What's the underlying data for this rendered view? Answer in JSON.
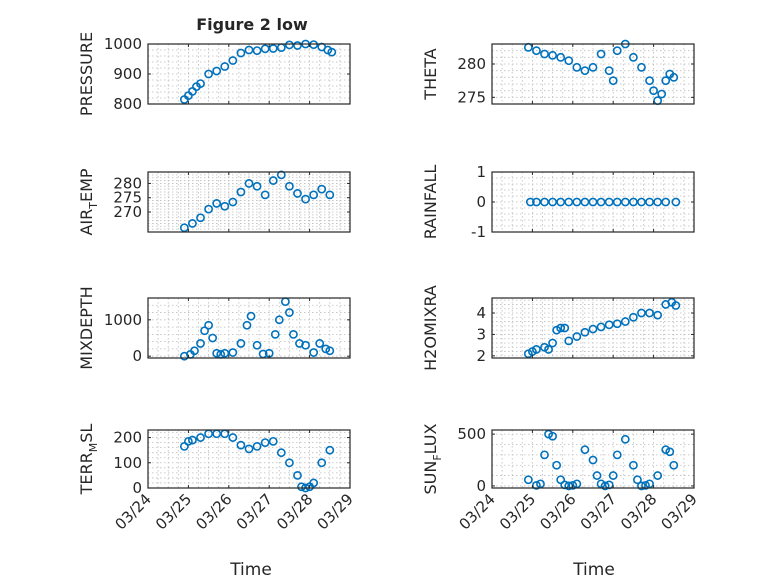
{
  "figure": {
    "title": "Figure 2 low",
    "xlabel": "Time",
    "x_tick_labels": [
      "03/24",
      "03/25",
      "03/26",
      "03/27",
      "03/28",
      "03/29"
    ],
    "marker_color": "#0072bd"
  },
  "chart_data": [
    {
      "type": "scatter",
      "ylabel": "PRESSURE",
      "xlim": [
        24,
        29
      ],
      "ylim": [
        800,
        1000
      ],
      "yticks": [
        800,
        900,
        1000
      ],
      "x": [
        24.9,
        25.0,
        25.1,
        25.2,
        25.3,
        25.5,
        25.7,
        25.9,
        26.1,
        26.3,
        26.5,
        26.7,
        26.9,
        27.1,
        27.3,
        27.5,
        27.7,
        27.9,
        28.1,
        28.3,
        28.45,
        28.55
      ],
      "y": [
        815,
        828,
        842,
        858,
        868,
        900,
        910,
        925,
        945,
        970,
        980,
        978,
        984,
        985,
        988,
        997,
        995,
        1000,
        998,
        990,
        980,
        973
      ]
    },
    {
      "type": "scatter",
      "ylabel": "THETA",
      "xlim": [
        24,
        29
      ],
      "ylim": [
        274,
        283
      ],
      "yticks": [
        275,
        280
      ],
      "x": [
        24.9,
        25.1,
        25.3,
        25.5,
        25.7,
        25.9,
        26.1,
        26.3,
        26.5,
        26.7,
        26.9,
        27.0,
        27.1,
        27.3,
        27.5,
        27.7,
        27.9,
        28.0,
        28.1,
        28.2,
        28.3,
        28.4,
        28.5
      ],
      "y": [
        282.5,
        282.0,
        281.5,
        281.3,
        281.0,
        280.5,
        279.5,
        279.0,
        279.5,
        281.5,
        279.0,
        277.5,
        282.0,
        283.0,
        281.0,
        279.5,
        277.5,
        276.0,
        274.5,
        275.5,
        277.5,
        278.5,
        278.0
      ]
    },
    {
      "type": "scatter",
      "ylabel": "AIR_TEMP",
      "ylabel_parts": [
        "AIR",
        "T",
        "EMP"
      ],
      "xlim": [
        24,
        29
      ],
      "ylim": [
        263,
        284
      ],
      "yticks": [
        270,
        275,
        280
      ],
      "x": [
        24.9,
        25.1,
        25.3,
        25.5,
        25.7,
        25.9,
        26.1,
        26.3,
        26.5,
        26.7,
        26.9,
        27.1,
        27.3,
        27.5,
        27.7,
        27.9,
        28.1,
        28.3,
        28.5
      ],
      "y": [
        264.5,
        266,
        268,
        271,
        273,
        272,
        273.5,
        277,
        280,
        279,
        276,
        281,
        283,
        279,
        276.5,
        274.5,
        276,
        278,
        276
      ]
    },
    {
      "type": "scatter",
      "ylabel": "RAINFALL",
      "xlim": [
        24,
        29
      ],
      "ylim": [
        -1,
        1
      ],
      "yticks": [
        -1,
        0,
        1
      ],
      "x": [
        24.95,
        25.1,
        25.3,
        25.5,
        25.7,
        25.9,
        26.1,
        26.3,
        26.5,
        26.7,
        26.9,
        27.1,
        27.3,
        27.5,
        27.7,
        27.9,
        28.1,
        28.3,
        28.55
      ],
      "y": [
        0,
        0,
        0,
        0,
        0,
        0,
        0,
        0,
        0,
        0,
        0,
        0,
        0,
        0,
        0,
        0,
        0,
        0,
        0
      ]
    },
    {
      "type": "scatter",
      "ylabel": "MIXDEPTH",
      "xlim": [
        24,
        29
      ],
      "ylim": [
        -50,
        1600
      ],
      "yticks": [
        0,
        1000
      ],
      "x": [
        24.9,
        25.05,
        25.15,
        25.3,
        25.4,
        25.5,
        25.6,
        25.7,
        25.8,
        25.9,
        26.1,
        26.3,
        26.45,
        26.55,
        26.7,
        26.85,
        27.0,
        27.15,
        27.25,
        27.4,
        27.5,
        27.6,
        27.75,
        27.9,
        28.1,
        28.25,
        28.4,
        28.5
      ],
      "y": [
        0,
        50,
        150,
        350,
        700,
        850,
        500,
        80,
        50,
        80,
        100,
        350,
        850,
        1100,
        300,
        60,
        80,
        600,
        1000,
        1500,
        1200,
        600,
        350,
        300,
        100,
        350,
        200,
        150
      ]
    },
    {
      "type": "scatter",
      "ylabel": "H2OMIXRA",
      "xlim": [
        24,
        29
      ],
      "ylim": [
        1.9,
        4.7
      ],
      "yticks": [
        2,
        3,
        4
      ],
      "x": [
        24.9,
        25.0,
        25.1,
        25.3,
        25.4,
        25.5,
        25.6,
        25.7,
        25.8,
        25.9,
        26.1,
        26.3,
        26.5,
        26.7,
        26.9,
        27.1,
        27.3,
        27.5,
        27.7,
        27.9,
        28.1,
        28.3,
        28.45,
        28.55
      ],
      "y": [
        2.1,
        2.2,
        2.3,
        2.4,
        2.3,
        2.6,
        3.2,
        3.3,
        3.3,
        2.7,
        2.9,
        3.1,
        3.25,
        3.35,
        3.45,
        3.5,
        3.6,
        3.8,
        4.0,
        4.0,
        3.9,
        4.4,
        4.5,
        4.35
      ]
    },
    {
      "type": "scatter",
      "ylabel": "TERR_MSL",
      "ylabel_parts": [
        "TERR",
        "M",
        "SL"
      ],
      "xlim": [
        24,
        29
      ],
      "ylim": [
        0,
        230
      ],
      "yticks": [
        0,
        100,
        200
      ],
      "x": [
        24.9,
        25.0,
        25.1,
        25.3,
        25.5,
        25.7,
        25.9,
        26.1,
        26.3,
        26.5,
        26.7,
        26.9,
        27.1,
        27.3,
        27.5,
        27.7,
        27.8,
        27.9,
        28.0,
        28.1,
        28.3,
        28.5
      ],
      "y": [
        165,
        185,
        190,
        200,
        215,
        215,
        215,
        200,
        170,
        155,
        165,
        180,
        185,
        140,
        100,
        50,
        5,
        0,
        5,
        20,
        100,
        150
      ]
    },
    {
      "type": "scatter",
      "ylabel": "SUN_FLUX",
      "ylabel_parts": [
        "SUN",
        "F",
        "LUX"
      ],
      "xlim": [
        24,
        29
      ],
      "ylim": [
        -20,
        540
      ],
      "yticks": [
        0,
        500
      ],
      "x": [
        24.9,
        25.1,
        25.2,
        25.3,
        25.4,
        25.5,
        25.6,
        25.7,
        25.8,
        25.9,
        26.0,
        26.1,
        26.3,
        26.5,
        26.6,
        26.7,
        26.8,
        26.9,
        27.0,
        27.1,
        27.3,
        27.5,
        27.6,
        27.7,
        27.8,
        27.9,
        28.1,
        28.3,
        28.4,
        28.5
      ],
      "y": [
        60,
        5,
        20,
        300,
        500,
        480,
        200,
        60,
        10,
        0,
        5,
        20,
        350,
        250,
        100,
        20,
        0,
        10,
        100,
        300,
        450,
        200,
        60,
        0,
        5,
        20,
        100,
        350,
        330,
        200
      ]
    }
  ]
}
